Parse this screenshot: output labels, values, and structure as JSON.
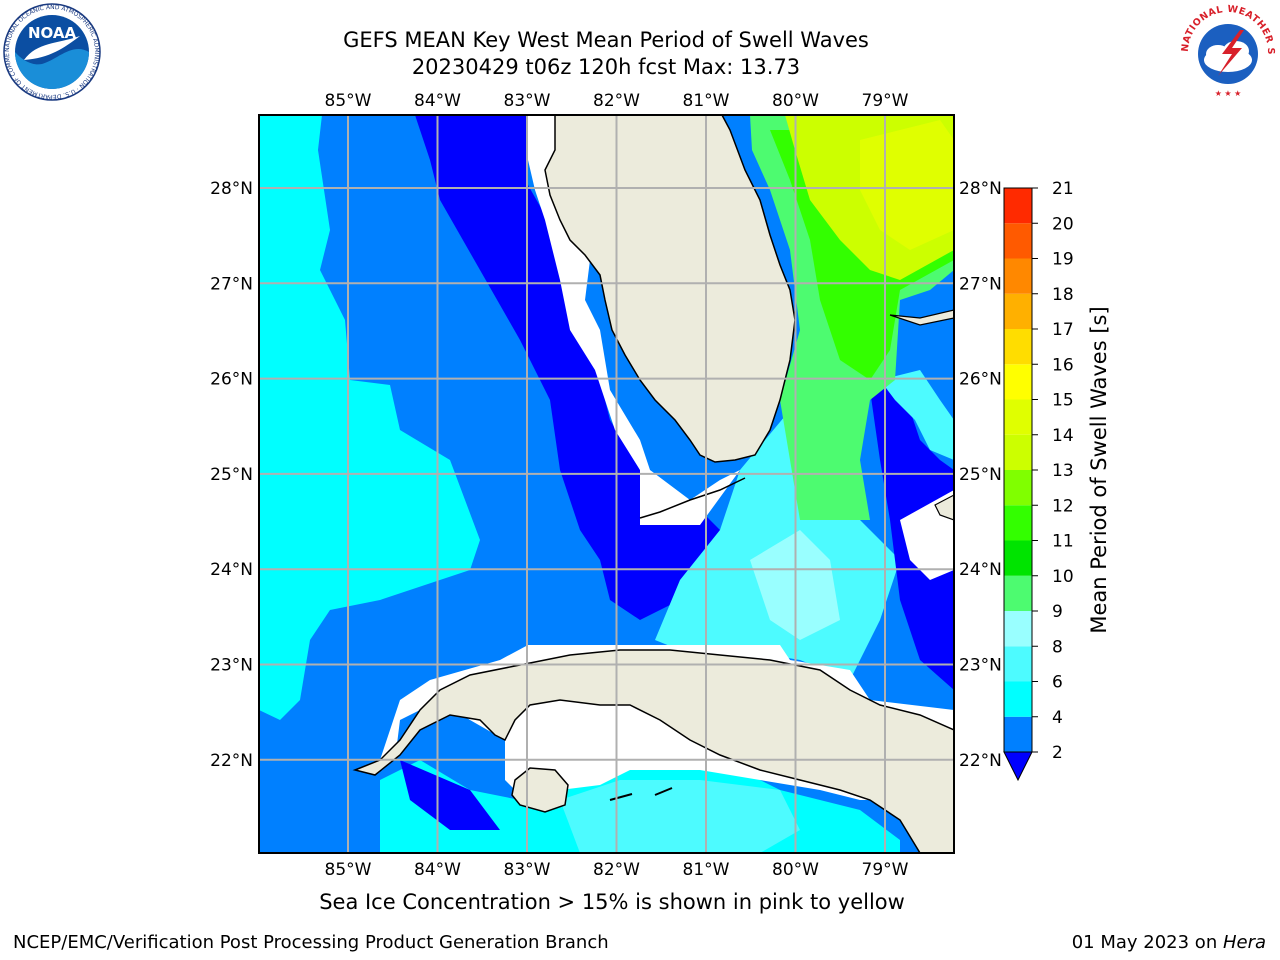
{
  "header": {
    "title_line1": "GEFS MEAN Key West Mean Period of Swell Waves",
    "title_line2": "20230429 t06z 120h fcst   Max: 13.73"
  },
  "logos": {
    "noaa_text": "NOAA",
    "noaa_ring_text": "NATIONAL OCEANIC AND ATMOSPHERIC ADMINISTRATION · U.S. DEPARTMENT OF COMMERCE",
    "nws_ring_text": "NATIONAL WEATHER SERVICE"
  },
  "map": {
    "lon_labels": [
      "85°W",
      "84°W",
      "83°W",
      "82°W",
      "81°W",
      "80°W",
      "79°W"
    ],
    "lat_labels": [
      "28°N",
      "27°N",
      "26°N",
      "25°N",
      "24°N",
      "23°N",
      "22°N"
    ],
    "lon_values": [
      -85,
      -84,
      -83,
      -82,
      -81,
      -80,
      -79
    ],
    "lat_values": [
      28,
      27,
      26,
      25,
      24,
      23,
      22
    ],
    "land_color": "#ecebdc",
    "grid_color": "#b0b0b0"
  },
  "colorbar": {
    "label": "Mean Period of Swell Waves [s]",
    "ticks": [
      "21",
      "20",
      "19",
      "18",
      "17",
      "16",
      "15",
      "14",
      "13",
      "12",
      "11",
      "10",
      "9",
      "8",
      "6",
      "4",
      "2"
    ],
    "colors": [
      "#0000ff",
      "#0080ff",
      "#00ffff",
      "#4dfbff",
      "#99ffff",
      "#4dfb70",
      "#00e400",
      "#33ff00",
      "#80ff00",
      "#ccff00",
      "#e0ff00",
      "#ffff00",
      "#ffdd00",
      "#ffb000",
      "#ff8800",
      "#ff5a00",
      "#ff2a00",
      "#ff0000"
    ]
  },
  "ice_note": "Sea Ice Concentration > 15% is shown in pink to yellow",
  "footer": {
    "left": "NCEP/EMC/Verification Post Processing Product Generation Branch",
    "right_prefix": "01 May 2023 on ",
    "right_host": "Hera"
  }
}
